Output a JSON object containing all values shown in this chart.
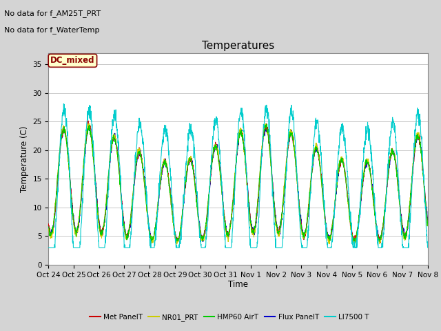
{
  "title": "Temperatures",
  "xlabel": "Time",
  "ylabel": "Temperature (C)",
  "ylim": [
    0,
    37
  ],
  "yticks": [
    0,
    5,
    10,
    15,
    20,
    25,
    30,
    35
  ],
  "annotations": [
    "No data for f_AM25T_PRT",
    "No data for f_WaterTemp"
  ],
  "legend_box_label": "DC_mixed",
  "legend_box_color": "#8b0000",
  "series_colors": {
    "Met PanelT": "#cc0000",
    "NR01_PRT": "#cccc00",
    "HMP60 AirT": "#00cc00",
    "Flux PanelT": "#0000cc",
    "LI7500 T": "#00cccc"
  },
  "fig_bg": "#d4d4d4",
  "plot_bg": "#ffffff",
  "xtick_labels": [
    "Oct 24",
    "Oct 25",
    "Oct 26",
    "Oct 27",
    "Oct 28",
    "Oct 29",
    "Oct 30",
    "Oct 31",
    "Nov 1",
    "Nov 2",
    "Nov 3",
    "Nov 4",
    "Nov 5",
    "Nov 6",
    "Nov 7",
    "Nov 8"
  ],
  "num_days": 15,
  "seed": 42
}
